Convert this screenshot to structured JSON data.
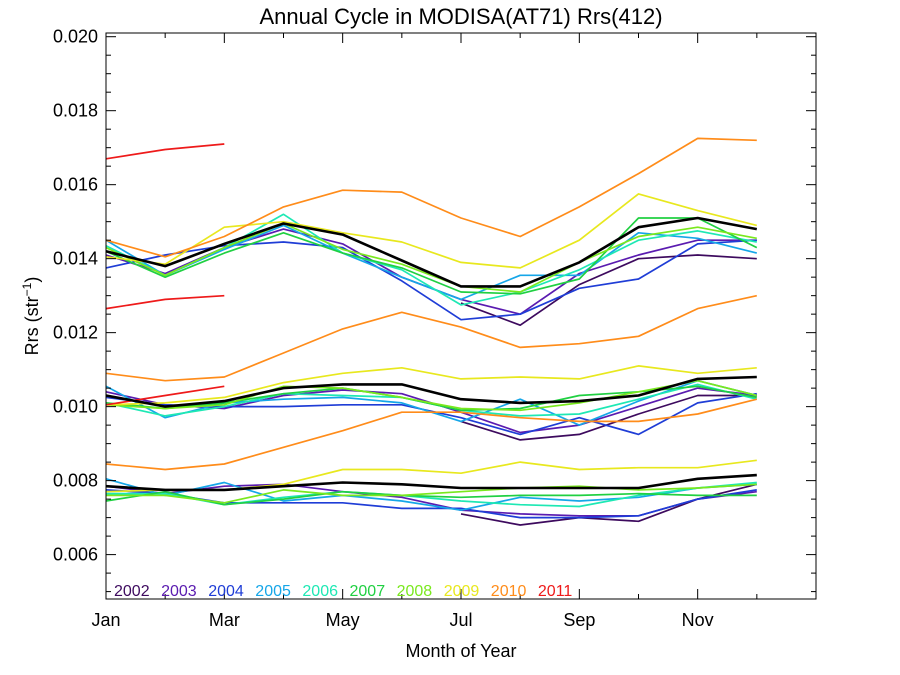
{
  "chart_data": {
    "type": "line",
    "title": "Annual Cycle in MODISA(AT71) Rrs(412)",
    "xlabel": "Month of Year",
    "ylabel_main": "Rrs (str",
    "ylabel_sup": "−1",
    "ylabel_close": ")",
    "xlim": [
      1,
      13
    ],
    "ylim": [
      0.0048,
      0.0201
    ],
    "x_ticks": [
      {
        "value": 1,
        "label": "Jan"
      },
      {
        "value": 3,
        "label": "Mar"
      },
      {
        "value": 5,
        "label": "May"
      },
      {
        "value": 7,
        "label": "Jul"
      },
      {
        "value": 9,
        "label": "Sep"
      },
      {
        "value": 11,
        "label": "Nov"
      }
    ],
    "x_minor_ticks": [
      2,
      4,
      6,
      8,
      10,
      12
    ],
    "y_ticks": [
      {
        "value": 0.006,
        "label": "0.006"
      },
      {
        "value": 0.008,
        "label": "0.008"
      },
      {
        "value": 0.01,
        "label": "0.010"
      },
      {
        "value": 0.012,
        "label": "0.012"
      },
      {
        "value": 0.014,
        "label": "0.014"
      },
      {
        "value": 0.016,
        "label": "0.016"
      },
      {
        "value": 0.018,
        "label": "0.018"
      },
      {
        "value": 0.02,
        "label": "0.020"
      }
    ],
    "y_minor_step": 0.0005,
    "legend_placement": "bottom-left",
    "x": [
      1,
      2,
      3,
      4,
      5,
      6,
      7,
      8,
      9,
      10,
      11,
      12
    ],
    "series": [
      {
        "name": "2002",
        "color": "#3d0a5e",
        "groups": [
          [
            null,
            null,
            null,
            null,
            null,
            null,
            7.1,
            6.8,
            7.0,
            6.9,
            7.5,
            7.9
          ],
          [
            null,
            null,
            null,
            null,
            null,
            null,
            9.6,
            9.1,
            9.25,
            9.8,
            10.3,
            10.3
          ],
          [
            null,
            null,
            null,
            null,
            null,
            null,
            12.8,
            12.2,
            13.3,
            14.0,
            14.1,
            14.0
          ]
        ]
      },
      {
        "name": "2003",
        "color": "#5a1bb0",
        "groups": [
          [
            7.85,
            7.65,
            7.85,
            7.9,
            7.7,
            7.55,
            7.2,
            7.1,
            7.05,
            7.05,
            7.5,
            7.7
          ],
          [
            10.4,
            10.05,
            9.95,
            10.3,
            10.45,
            10.35,
            9.85,
            9.3,
            9.5,
            10.0,
            10.5,
            10.3
          ],
          [
            14.1,
            13.6,
            14.3,
            14.8,
            14.4,
            13.5,
            12.9,
            12.5,
            13.6,
            14.1,
            14.5,
            14.5
          ]
        ]
      },
      {
        "name": "2004",
        "color": "#1f3dd6",
        "groups": [
          [
            7.75,
            7.65,
            7.4,
            7.4,
            7.4,
            7.25,
            7.25,
            7.0,
            7.0,
            7.05,
            7.5,
            7.75
          ],
          [
            10.25,
            10.05,
            10.0,
            10.0,
            10.05,
            10.05,
            9.7,
            9.25,
            9.7,
            9.25,
            10.1,
            10.35
          ],
          [
            13.75,
            14.1,
            14.35,
            14.45,
            14.3,
            13.4,
            12.35,
            12.5,
            13.2,
            13.45,
            14.4,
            14.5
          ]
        ]
      },
      {
        "name": "2005",
        "color": "#15a6e8",
        "groups": [
          [
            8.05,
            7.6,
            7.95,
            7.45,
            7.6,
            7.45,
            7.2,
            7.55,
            7.45,
            7.55,
            7.8,
            7.9
          ],
          [
            10.55,
            9.7,
            10.1,
            10.2,
            10.25,
            10.1,
            9.6,
            10.2,
            9.5,
            10.15,
            10.7,
            10.3
          ],
          [
            14.5,
            13.55,
            14.25,
            14.9,
            14.15,
            13.5,
            12.9,
            13.55,
            13.55,
            14.7,
            14.55,
            14.15
          ]
        ]
      },
      {
        "name": "2006",
        "color": "#1ee8b4",
        "groups": [
          [
            7.65,
            7.65,
            7.35,
            7.55,
            7.7,
            7.6,
            7.45,
            7.35,
            7.3,
            7.6,
            7.8,
            7.95
          ],
          [
            10.1,
            9.75,
            10.0,
            10.35,
            10.3,
            10.25,
            9.9,
            9.75,
            9.8,
            10.2,
            10.6,
            10.2
          ],
          [
            14.35,
            13.55,
            14.3,
            15.2,
            14.15,
            13.7,
            12.75,
            13.1,
            13.7,
            14.5,
            14.75,
            14.45
          ]
        ]
      },
      {
        "name": "2007",
        "color": "#20d042",
        "groups": [
          [
            7.45,
            7.7,
            7.35,
            7.5,
            7.7,
            7.6,
            7.55,
            7.6,
            7.6,
            7.65,
            7.6,
            7.6
          ],
          [
            10.1,
            9.95,
            10.1,
            10.35,
            10.5,
            10.25,
            9.9,
            9.95,
            10.3,
            10.4,
            10.55,
            10.25
          ],
          [
            14.2,
            13.5,
            14.15,
            14.7,
            14.15,
            13.75,
            13.1,
            13.05,
            13.45,
            15.1,
            15.1,
            14.3
          ]
        ]
      },
      {
        "name": "2008",
        "color": "#7ae81e",
        "groups": [
          [
            7.6,
            7.6,
            7.4,
            7.75,
            7.6,
            7.6,
            7.7,
            7.8,
            7.85,
            7.75,
            7.8,
            7.9
          ],
          [
            10.05,
            9.95,
            10.05,
            10.55,
            10.5,
            10.25,
            9.95,
            9.9,
            10.1,
            10.4,
            10.7,
            10.3
          ],
          [
            14.3,
            13.55,
            14.3,
            14.95,
            14.25,
            13.85,
            13.25,
            13.1,
            13.9,
            14.6,
            14.85,
            14.55
          ]
        ]
      },
      {
        "name": "2009",
        "color": "#e8e81e",
        "groups": [
          [
            7.7,
            7.75,
            7.75,
            7.9,
            8.3,
            8.3,
            8.2,
            8.5,
            8.3,
            8.35,
            8.35,
            8.55
          ],
          [
            10.05,
            10.1,
            10.25,
            10.65,
            10.9,
            11.05,
            10.75,
            10.8,
            10.75,
            11.1,
            10.9,
            11.05
          ],
          [
            14.05,
            13.85,
            14.85,
            15.0,
            14.7,
            14.45,
            13.9,
            13.75,
            14.5,
            15.75,
            15.3,
            14.9
          ]
        ]
      },
      {
        "name": "2010",
        "color": "#ff8c1a",
        "groups": [
          [
            8.45,
            8.3,
            8.45,
            8.9,
            9.35,
            9.85,
            9.85,
            9.7,
            9.6,
            9.6,
            9.8,
            10.2
          ],
          [
            10.9,
            10.7,
            10.8,
            11.45,
            12.1,
            12.55,
            12.15,
            11.6,
            11.7,
            11.9,
            12.65,
            13.0
          ],
          [
            14.5,
            14.05,
            14.6,
            15.4,
            15.85,
            15.8,
            15.1,
            14.6,
            15.4,
            16.3,
            17.25,
            17.2
          ]
        ]
      },
      {
        "name": "2011",
        "color": "#ee1a1a",
        "groups": [
          [
            10.05,
            10.3,
            10.55,
            null,
            null,
            null,
            null,
            null,
            null,
            null,
            null,
            null
          ],
          [
            12.65,
            12.9,
            13.0,
            null,
            null,
            null,
            null,
            null,
            null,
            null,
            null,
            null
          ],
          [
            16.7,
            16.95,
            17.1,
            null,
            null,
            null,
            null,
            null,
            null,
            null,
            null,
            null
          ]
        ]
      }
    ],
    "climatology": {
      "color": "#000000",
      "groups": [
        [
          7.85,
          7.75,
          7.75,
          7.85,
          7.95,
          7.9,
          7.8,
          7.8,
          7.8,
          7.8,
          8.05,
          8.15
        ],
        [
          10.3,
          10.0,
          10.15,
          10.5,
          10.6,
          10.6,
          10.2,
          10.1,
          10.15,
          10.3,
          10.75,
          10.8
        ],
        [
          14.2,
          13.8,
          14.4,
          14.95,
          14.65,
          13.95,
          13.25,
          13.25,
          13.9,
          14.85,
          15.1,
          14.8
        ]
      ]
    },
    "value_scale_note": "group values are listed in units of 0.001 Rrs"
  }
}
